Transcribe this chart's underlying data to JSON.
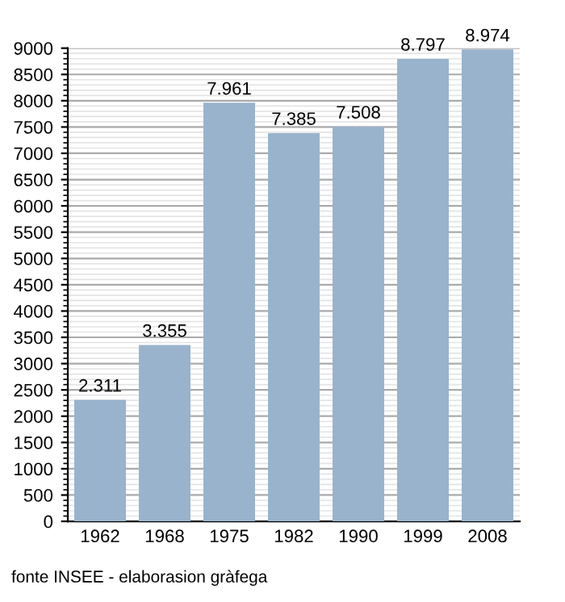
{
  "chart_data": {
    "type": "bar",
    "categories": [
      "1962",
      "1968",
      "1975",
      "1982",
      "1990",
      "1999",
      "2008"
    ],
    "values": [
      2311,
      3355,
      7961,
      7385,
      7508,
      8797,
      8974
    ],
    "value_labels": [
      "2.311",
      "3.355",
      "7.961",
      "7.385",
      "7.508",
      "8.797",
      "8.974"
    ],
    "color": "#99b3cc",
    "ylim": [
      0,
      9000
    ],
    "yticks": [
      0,
      500,
      1000,
      1500,
      2000,
      2500,
      3000,
      3500,
      4000,
      4500,
      5000,
      5500,
      6000,
      6500,
      7000,
      7500,
      8000,
      8500,
      9000
    ],
    "grid": "y",
    "annotations": [
      "fonte INSEE - elaborasion gràfega"
    ]
  }
}
